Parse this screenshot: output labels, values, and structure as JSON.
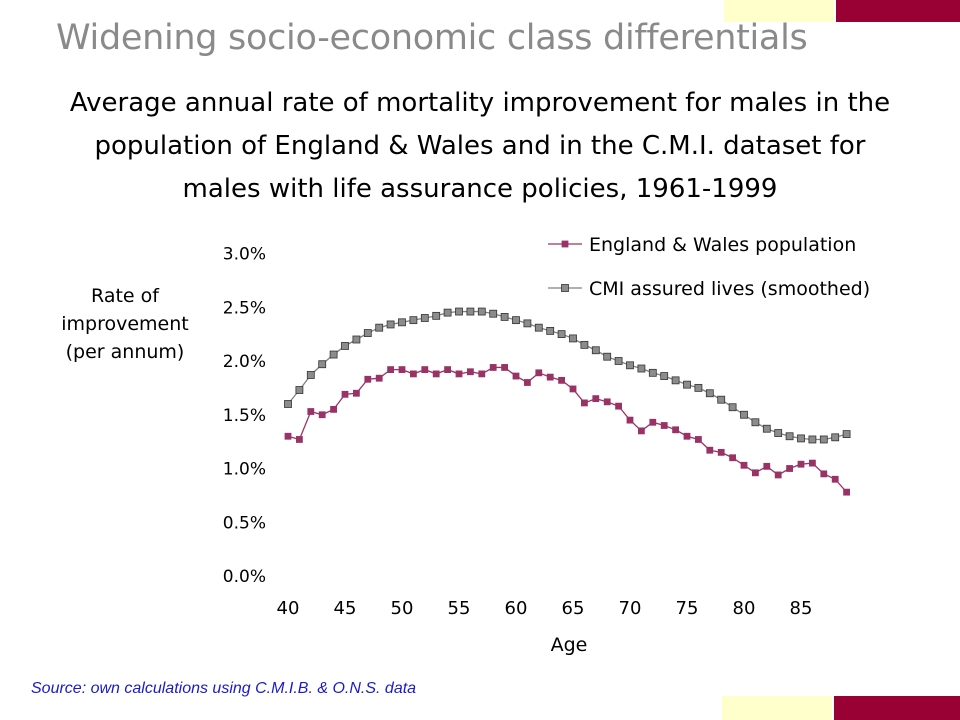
{
  "slide": {
    "title": "Widening socio-economic class differentials",
    "subtitle_lines": [
      "Average annual rate of mortality improvement for males in the",
      "population of England & Wales and in the C.M.I. dataset for",
      "males with life assurance policies, 1961-1999"
    ],
    "source": "Source: own calculations using C.M.I.B. & O.N.S. data"
  },
  "colors": {
    "title": "#8a8a8a",
    "accent_maroon": "#990033",
    "accent_cream": "#ffffcc",
    "series_ew": "#993366",
    "series_cmi": "#808080",
    "source_text": "#1a1acc"
  },
  "chart_data": {
    "type": "line",
    "xlabel": "Age",
    "ylabel_lines": [
      "Rate of",
      "improvement",
      "(per annum)"
    ],
    "x_ticks": [
      40,
      45,
      50,
      55,
      60,
      65,
      70,
      75,
      80,
      85
    ],
    "y_ticks": [
      "0.0%",
      "0.5%",
      "1.0%",
      "1.5%",
      "2.0%",
      "2.5%",
      "3.0%"
    ],
    "y_tick_values": [
      0,
      0.5,
      1.0,
      1.5,
      2.0,
      2.5,
      3.0
    ],
    "xlim": [
      40,
      90
    ],
    "ylim": [
      0,
      3.0
    ],
    "grid": false,
    "legend_position": "top-right",
    "x": [
      40,
      41,
      42,
      43,
      44,
      45,
      46,
      47,
      48,
      49,
      50,
      51,
      52,
      53,
      54,
      55,
      56,
      57,
      58,
      59,
      60,
      61,
      62,
      63,
      64,
      65,
      66,
      67,
      68,
      69,
      70,
      71,
      72,
      73,
      74,
      75,
      76,
      77,
      78,
      79,
      80,
      81,
      82,
      83,
      84,
      85,
      86,
      87,
      88,
      89
    ],
    "series": [
      {
        "name": "England & Wales population",
        "marker": "square",
        "values": [
          1.3,
          1.27,
          1.53,
          1.5,
          1.55,
          1.69,
          1.7,
          1.83,
          1.84,
          1.92,
          1.92,
          1.88,
          1.92,
          1.88,
          1.92,
          1.88,
          1.9,
          1.88,
          1.94,
          1.94,
          1.86,
          1.8,
          1.89,
          1.85,
          1.82,
          1.74,
          1.61,
          1.65,
          1.62,
          1.58,
          1.45,
          1.35,
          1.43,
          1.4,
          1.36,
          1.3,
          1.27,
          1.17,
          1.15,
          1.1,
          1.03,
          0.96,
          1.02,
          0.94,
          1.0,
          1.04,
          1.05,
          0.95,
          0.9,
          0.78
        ]
      },
      {
        "name": "CMI assured lives (smoothed)",
        "marker": "square",
        "values": [
          1.6,
          1.73,
          1.87,
          1.97,
          2.06,
          2.14,
          2.2,
          2.26,
          2.31,
          2.34,
          2.36,
          2.38,
          2.4,
          2.42,
          2.45,
          2.46,
          2.46,
          2.46,
          2.44,
          2.41,
          2.38,
          2.35,
          2.31,
          2.28,
          2.25,
          2.21,
          2.15,
          2.1,
          2.04,
          2.0,
          1.96,
          1.93,
          1.89,
          1.86,
          1.82,
          1.78,
          1.75,
          1.7,
          1.64,
          1.57,
          1.5,
          1.43,
          1.37,
          1.33,
          1.3,
          1.28,
          1.27,
          1.27,
          1.29,
          1.32
        ]
      }
    ]
  }
}
